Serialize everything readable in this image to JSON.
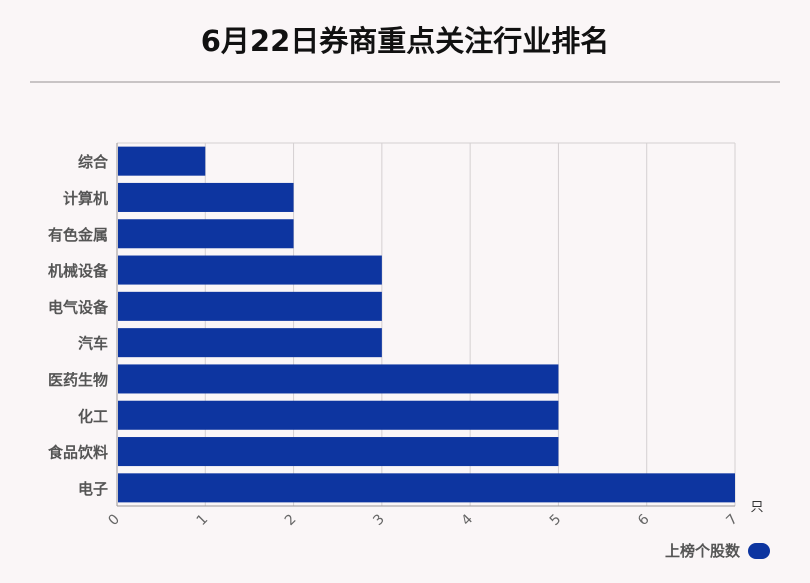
{
  "chart_data": {
    "type": "bar",
    "orientation": "horizontal",
    "title": "6月22日券商重点关注行业排名",
    "categories": [
      "综合",
      "计算机",
      "有色金属",
      "机械设备",
      "电气设备",
      "汽车",
      "医药生物",
      "化工",
      "食品饮料",
      "电子"
    ],
    "series": [
      {
        "name": "上榜个股数",
        "values": [
          1,
          2,
          2,
          3,
          3,
          3,
          5,
          5,
          5,
          7
        ],
        "color": "#0d35a0"
      }
    ],
    "xlim": [
      0,
      7
    ],
    "xticks": [
      "0",
      "1",
      "2",
      "3",
      "4",
      "5",
      "6",
      "7"
    ],
    "x_unit": "只",
    "grid": true,
    "legend_position": "bottom-right"
  }
}
